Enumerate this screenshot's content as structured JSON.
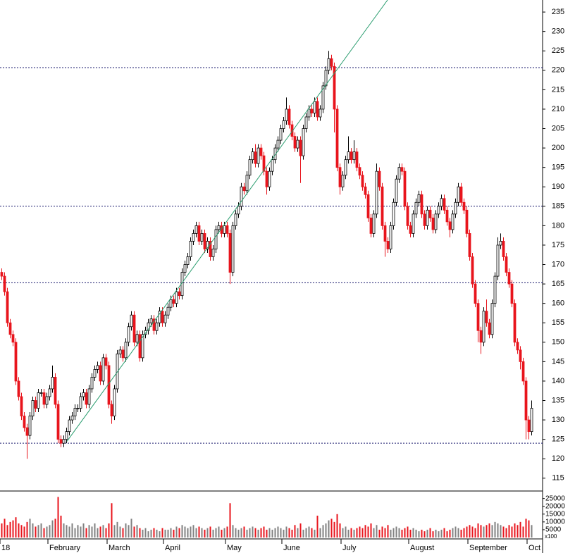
{
  "chart_data": {
    "type": "candlestick",
    "categories": [
      "18",
      null,
      null,
      null,
      null,
      null,
      null,
      null,
      null,
      null,
      null,
      null,
      null,
      null,
      null,
      null,
      null,
      "February",
      null,
      null,
      null,
      null,
      null,
      null,
      null,
      null,
      null,
      null,
      null,
      null,
      null,
      null,
      null,
      null,
      null,
      null,
      null,
      null,
      "March",
      null,
      null,
      null,
      null,
      null,
      null,
      null,
      null,
      null,
      null,
      null,
      null,
      null,
      null,
      null,
      null,
      null,
      null,
      null,
      "April",
      null,
      null,
      null,
      null,
      null,
      null,
      null,
      null,
      null,
      null,
      null,
      null,
      null,
      null,
      null,
      null,
      null,
      null,
      null,
      null,
      null,
      "May",
      null,
      null,
      null,
      null,
      null,
      null,
      null,
      null,
      null,
      null,
      null,
      null,
      null,
      null,
      null,
      null,
      null,
      null,
      null,
      "June",
      null,
      null,
      null,
      null,
      null,
      null,
      null,
      null,
      null,
      null,
      null,
      null,
      null,
      null,
      null,
      null,
      null,
      null,
      null,
      null,
      "July",
      null,
      null,
      null,
      null,
      null,
      null,
      null,
      null,
      null,
      null,
      null,
      null,
      null,
      null,
      null,
      null,
      null,
      null,
      null,
      null,
      null,
      null,
      null,
      "August",
      null,
      null,
      null,
      null,
      null,
      null,
      null,
      null,
      null,
      null,
      null,
      null,
      null,
      null,
      null,
      null,
      null,
      null,
      null,
      null,
      "September",
      null,
      null,
      null,
      null,
      null,
      null,
      null,
      null,
      null,
      null,
      null,
      null,
      null,
      null,
      null,
      null,
      null,
      null,
      null,
      null,
      "Oct",
      null
    ],
    "ohlc": [
      [
        168,
        169,
        166,
        167
      ],
      [
        167,
        168,
        162,
        163
      ],
      [
        163,
        164,
        154,
        155
      ],
      [
        155,
        156,
        151,
        152
      ],
      [
        152,
        153,
        149,
        150
      ],
      [
        150,
        151,
        139,
        140
      ],
      [
        140,
        141,
        135,
        136
      ],
      [
        136,
        137,
        130,
        131
      ],
      [
        131,
        132,
        127,
        128
      ],
      [
        128,
        129,
        120,
        126
      ],
      [
        126,
        132,
        125,
        131
      ],
      [
        131,
        136,
        130,
        135
      ],
      [
        135,
        136,
        132,
        133
      ],
      [
        133,
        138,
        132,
        137
      ],
      [
        137,
        138,
        136,
        137
      ],
      [
        137,
        138,
        133,
        134
      ],
      [
        134,
        137,
        133,
        136
      ],
      [
        136,
        139,
        135,
        138
      ],
      [
        138,
        144,
        137,
        141
      ],
      [
        141,
        142,
        133,
        134
      ],
      [
        134,
        135,
        124,
        125
      ],
      [
        125,
        126,
        123,
        124
      ],
      [
        124,
        126,
        123,
        125
      ],
      [
        125,
        128,
        124,
        127
      ],
      [
        127,
        131,
        126,
        130
      ],
      [
        130,
        132,
        129,
        131
      ],
      [
        131,
        134,
        130,
        133
      ],
      [
        133,
        134,
        132,
        133
      ],
      [
        133,
        137,
        132,
        136
      ],
      [
        136,
        138,
        135,
        137
      ],
      [
        137,
        138,
        133,
        134
      ],
      [
        134,
        139,
        133,
        138
      ],
      [
        138,
        142,
        137,
        141
      ],
      [
        141,
        144,
        140,
        143
      ],
      [
        143,
        145,
        142,
        144
      ],
      [
        144,
        145,
        139,
        140
      ],
      [
        140,
        147,
        139,
        146
      ],
      [
        146,
        147,
        143,
        144
      ],
      [
        144,
        145,
        133,
        134
      ],
      [
        134,
        135,
        129,
        131
      ],
      [
        131,
        139,
        130,
        138
      ],
      [
        138,
        148,
        137,
        147
      ],
      [
        147,
        149,
        146,
        148
      ],
      [
        148,
        149,
        145,
        146
      ],
      [
        146,
        151,
        145,
        150
      ],
      [
        150,
        155,
        149,
        154
      ],
      [
        154,
        158,
        153,
        157
      ],
      [
        157,
        158,
        149,
        150
      ],
      [
        150,
        153,
        149,
        152
      ],
      [
        152,
        153,
        145,
        146
      ],
      [
        146,
        153,
        145,
        152
      ],
      [
        152,
        154,
        151,
        153
      ],
      [
        153,
        156,
        152,
        155
      ],
      [
        155,
        157,
        154,
        156
      ],
      [
        156,
        157,
        152,
        153
      ],
      [
        153,
        156,
        152,
        155
      ],
      [
        155,
        159,
        154,
        158
      ],
      [
        158,
        159,
        154,
        155
      ],
      [
        155,
        158,
        154,
        157
      ],
      [
        157,
        160,
        156,
        159
      ],
      [
        159,
        162,
        158,
        161
      ],
      [
        161,
        162,
        159,
        160
      ],
      [
        160,
        164,
        159,
        163
      ],
      [
        163,
        164,
        161,
        162
      ],
      [
        162,
        169,
        161,
        168
      ],
      [
        168,
        171,
        167,
        170
      ],
      [
        170,
        173,
        169,
        172
      ],
      [
        172,
        177,
        171,
        176
      ],
      [
        176,
        179,
        175,
        178
      ],
      [
        178,
        181,
        177,
        180
      ],
      [
        180,
        181,
        175,
        176
      ],
      [
        176,
        179,
        175,
        178
      ],
      [
        178,
        179,
        173,
        174
      ],
      [
        174,
        177,
        173,
        176
      ],
      [
        176,
        177,
        171,
        172
      ],
      [
        172,
        175,
        171,
        174
      ],
      [
        174,
        180,
        173,
        179
      ],
      [
        179,
        181,
        178,
        180
      ],
      [
        180,
        181,
        177,
        178
      ],
      [
        178,
        181,
        177,
        180
      ],
      [
        180,
        181,
        177,
        178
      ],
      [
        178,
        179,
        165,
        168
      ],
      [
        168,
        181,
        167,
        180
      ],
      [
        180,
        184,
        179,
        183
      ],
      [
        183,
        186,
        182,
        185
      ],
      [
        185,
        191,
        184,
        190
      ],
      [
        190,
        191,
        188,
        189
      ],
      [
        189,
        194,
        188,
        193
      ],
      [
        193,
        198,
        192,
        197
      ],
      [
        197,
        200,
        196,
        199
      ],
      [
        199,
        201,
        195,
        196
      ],
      [
        196,
        201,
        195,
        200
      ],
      [
        200,
        201,
        197,
        198
      ],
      [
        198,
        199,
        193,
        194
      ],
      [
        194,
        195,
        188,
        190
      ],
      [
        190,
        195,
        189,
        194
      ],
      [
        194,
        198,
        193,
        197
      ],
      [
        197,
        201,
        196,
        200
      ],
      [
        200,
        203,
        199,
        202
      ],
      [
        202,
        206,
        201,
        205
      ],
      [
        205,
        208,
        204,
        207
      ],
      [
        207,
        213,
        206,
        210
      ],
      [
        210,
        211,
        205,
        206
      ],
      [
        206,
        207,
        202,
        203
      ],
      [
        203,
        204,
        199,
        200
      ],
      [
        200,
        203,
        199,
        202
      ],
      [
        202,
        203,
        191,
        198
      ],
      [
        198,
        206,
        197,
        205
      ],
      [
        205,
        209,
        204,
        208
      ],
      [
        208,
        211,
        207,
        210
      ],
      [
        210,
        211,
        208,
        209
      ],
      [
        209,
        213,
        208,
        212
      ],
      [
        212,
        213,
        207,
        208
      ],
      [
        208,
        211,
        207,
        210
      ],
      [
        210,
        217,
        209,
        216
      ],
      [
        216,
        221,
        215,
        220
      ],
      [
        220,
        225,
        219,
        223
      ],
      [
        223,
        224,
        220,
        221
      ],
      [
        221,
        222,
        204,
        210
      ],
      [
        210,
        211,
        194,
        195
      ],
      [
        195,
        196,
        188,
        190
      ],
      [
        190,
        194,
        189,
        193
      ],
      [
        193,
        198,
        192,
        197
      ],
      [
        197,
        203,
        196,
        199
      ],
      [
        199,
        200,
        196,
        197
      ],
      [
        197,
        202,
        196,
        199
      ],
      [
        199,
        200,
        194,
        195
      ],
      [
        195,
        196,
        192,
        193
      ],
      [
        193,
        194,
        189,
        190
      ],
      [
        190,
        191,
        187,
        188
      ],
      [
        188,
        189,
        181,
        182
      ],
      [
        182,
        183,
        177,
        178
      ],
      [
        178,
        184,
        177,
        183
      ],
      [
        183,
        196,
        182,
        194
      ],
      [
        194,
        195,
        189,
        190
      ],
      [
        190,
        191,
        179,
        180
      ],
      [
        180,
        181,
        172,
        176
      ],
      [
        176,
        177,
        173,
        174
      ],
      [
        174,
        181,
        173,
        180
      ],
      [
        180,
        187,
        179,
        186
      ],
      [
        186,
        193,
        185,
        192
      ],
      [
        192,
        196,
        191,
        195
      ],
      [
        195,
        196,
        193,
        194
      ],
      [
        194,
        195,
        184,
        185
      ],
      [
        185,
        186,
        179,
        180
      ],
      [
        180,
        181,
        177,
        178
      ],
      [
        178,
        184,
        177,
        183
      ],
      [
        183,
        187,
        182,
        186
      ],
      [
        186,
        189,
        185,
        188
      ],
      [
        188,
        189,
        182,
        183
      ],
      [
        183,
        184,
        179,
        180
      ],
      [
        180,
        185,
        179,
        184
      ],
      [
        184,
        185,
        181,
        182
      ],
      [
        182,
        183,
        178,
        179
      ],
      [
        179,
        184,
        178,
        183
      ],
      [
        183,
        186,
        182,
        185
      ],
      [
        185,
        188,
        184,
        187
      ],
      [
        187,
        188,
        183,
        184
      ],
      [
        184,
        185,
        180,
        181
      ],
      [
        181,
        182,
        177,
        179
      ],
      [
        179,
        184,
        178,
        183
      ],
      [
        183,
        187,
        182,
        186
      ],
      [
        186,
        191,
        185,
        190
      ],
      [
        190,
        191,
        185,
        186
      ],
      [
        186,
        187,
        183,
        184
      ],
      [
        184,
        185,
        177,
        178
      ],
      [
        178,
        179,
        171,
        172
      ],
      [
        172,
        173,
        164,
        165
      ],
      [
        165,
        166,
        159,
        160
      ],
      [
        160,
        161,
        150,
        153
      ],
      [
        153,
        154,
        147,
        150
      ],
      [
        150,
        159,
        149,
        158
      ],
      [
        158,
        161,
        154,
        155
      ],
      [
        155,
        156,
        151,
        152
      ],
      [
        152,
        161,
        151,
        160
      ],
      [
        160,
        168,
        159,
        167
      ],
      [
        167,
        177,
        166,
        175
      ],
      [
        175,
        178,
        174,
        176
      ],
      [
        176,
        177,
        171,
        172
      ],
      [
        172,
        173,
        167,
        168
      ],
      [
        168,
        169,
        164,
        165
      ],
      [
        165,
        166,
        159,
        160
      ],
      [
        160,
        161,
        149,
        150
      ],
      [
        150,
        151,
        147,
        148
      ],
      [
        148,
        149,
        143,
        145
      ],
      [
        145,
        146,
        139,
        140
      ],
      [
        140,
        141,
        125,
        130
      ],
      [
        130,
        131,
        125,
        127
      ],
      [
        127,
        135,
        126,
        133
      ]
    ],
    "volume": [
      9000,
      12000,
      8000,
      10000,
      11000,
      13000,
      9000,
      8000,
      7000,
      10000,
      12000,
      9000,
      7000,
      8000,
      9000,
      6000,
      7000,
      8000,
      11000,
      12000,
      26000,
      14000,
      9000,
      8000,
      7000,
      9000,
      6000,
      8000,
      7000,
      9000,
      6000,
      8000,
      7000,
      9000,
      6000,
      7000,
      8000,
      6000,
      9000,
      22000,
      8000,
      10000,
      7000,
      6000,
      9000,
      8000,
      12000,
      7000,
      8000,
      6000,
      5000,
      6000,
      4000,
      5000,
      6000,
      5000,
      4000,
      6000,
      5000,
      5000,
      6000,
      5000,
      7000,
      6000,
      8000,
      7000,
      6000,
      7000,
      8000,
      6000,
      7000,
      6000,
      5000,
      6000,
      7000,
      5000,
      6000,
      7000,
      5000,
      6000,
      7000,
      22000,
      8000,
      6000,
      5000,
      6000,
      7000,
      5000,
      6000,
      7000,
      6000,
      5000,
      6000,
      7000,
      5000,
      6000,
      5000,
      6000,
      7000,
      6000,
      5000,
      7000,
      6000,
      5000,
      8000,
      6000,
      9000,
      5000,
      6000,
      7000,
      6000,
      5000,
      14000,
      6000,
      8000,
      9000,
      11000,
      12000,
      10000,
      15000,
      9000,
      6000,
      7000,
      5000,
      6000,
      5000,
      6000,
      7000,
      6000,
      8000,
      7000,
      9000,
      6000,
      8000,
      5000,
      7000,
      6000,
      8000,
      5000,
      6000,
      7000,
      6000,
      5000,
      6000,
      7000,
      5000,
      6000,
      5000,
      4000,
      5000,
      4000,
      5000,
      6000,
      4000,
      5000,
      4000,
      5000,
      6000,
      4000,
      5000,
      6000,
      7000,
      6000,
      5000,
      6000,
      7000,
      8000,
      7000,
      6000,
      9000,
      8000,
      7000,
      8000,
      9000,
      8000,
      10000,
      9000,
      8000,
      7000,
      6000,
      8000,
      7000,
      9000,
      8000,
      10000,
      7000,
      12000,
      11000,
      8000
    ],
    "ylim": [
      111.7,
      238.1
    ],
    "yticks": [
      115,
      120,
      125,
      130,
      135,
      140,
      145,
      150,
      155,
      160,
      165,
      170,
      175,
      180,
      185,
      190,
      195,
      200,
      205,
      210,
      215,
      220,
      225,
      230,
      235
    ],
    "volume_ylim": [
      0,
      28000
    ],
    "volume_yticks": [
      5000,
      10000,
      15000,
      20000,
      25000
    ],
    "volume_unit_label": "x100",
    "hlines": [
      220.7,
      185,
      165.3,
      124
    ],
    "trendline": [
      [
        23.25,
        124.5
      ],
      [
        137,
        238.1
      ]
    ],
    "up_color": "#ffffff",
    "down_color": "#e8141c",
    "volume_up_color": "#808080",
    "trendline_color": "#2a9d6f"
  }
}
